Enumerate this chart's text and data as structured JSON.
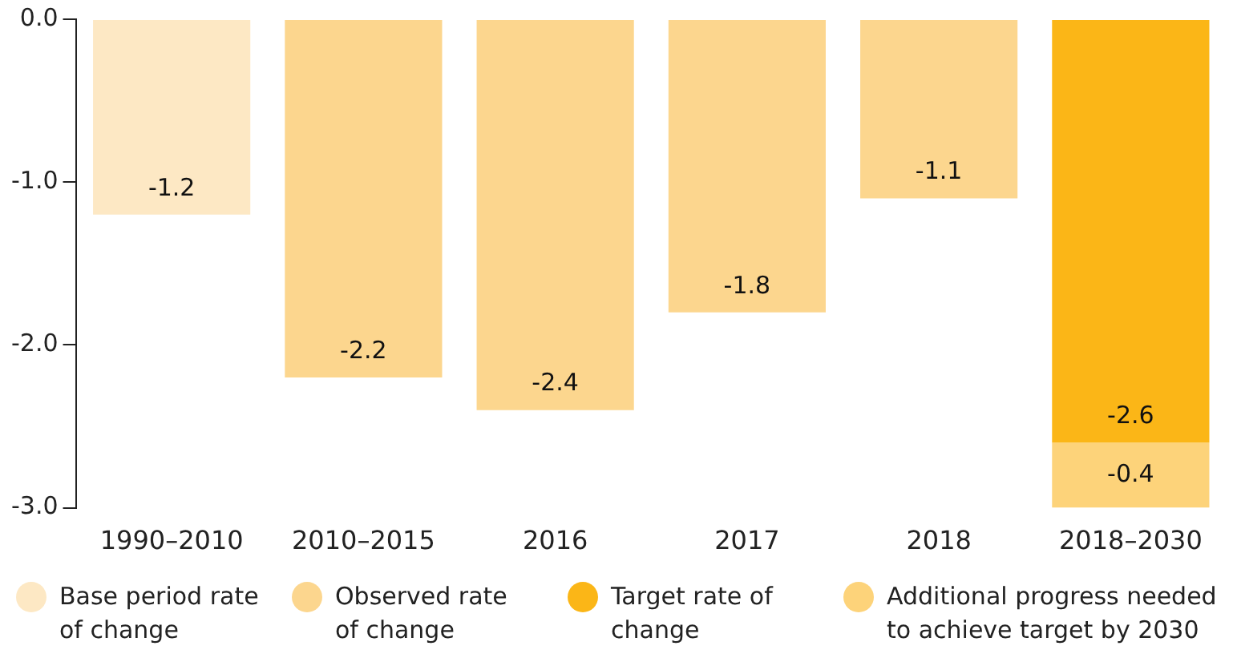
{
  "chart_data": {
    "type": "bar",
    "stacked": true,
    "categories": [
      "1990–2010",
      "2010–2015",
      "2016",
      "2017",
      "2018",
      "2018–2030"
    ],
    "series": [
      {
        "name": "Base period rate of change",
        "color": "#fde8c4",
        "values": [
          -1.2,
          null,
          null,
          null,
          null,
          null
        ]
      },
      {
        "name": "Observed rate of change",
        "color": "#fcd68e",
        "values": [
          null,
          -2.2,
          -2.4,
          -1.8,
          -1.1,
          null
        ]
      },
      {
        "name": "Target rate of change",
        "color": "#fbb617",
        "values": [
          null,
          null,
          null,
          null,
          null,
          -2.6
        ]
      },
      {
        "name": "Additional progress needed to achieve target by 2030",
        "color": "#fdd37a",
        "values": [
          null,
          null,
          null,
          null,
          null,
          -0.4
        ]
      }
    ],
    "ylim": [
      -3,
      0
    ],
    "yticks": [
      {
        "value": 0,
        "label": "0.0"
      },
      {
        "value": -1,
        "label": "-1.0"
      },
      {
        "value": -2,
        "label": "-2.0"
      },
      {
        "value": -3,
        "label": "-3.0"
      }
    ],
    "grid": false,
    "legend": "bottom",
    "data_labels": true
  }
}
